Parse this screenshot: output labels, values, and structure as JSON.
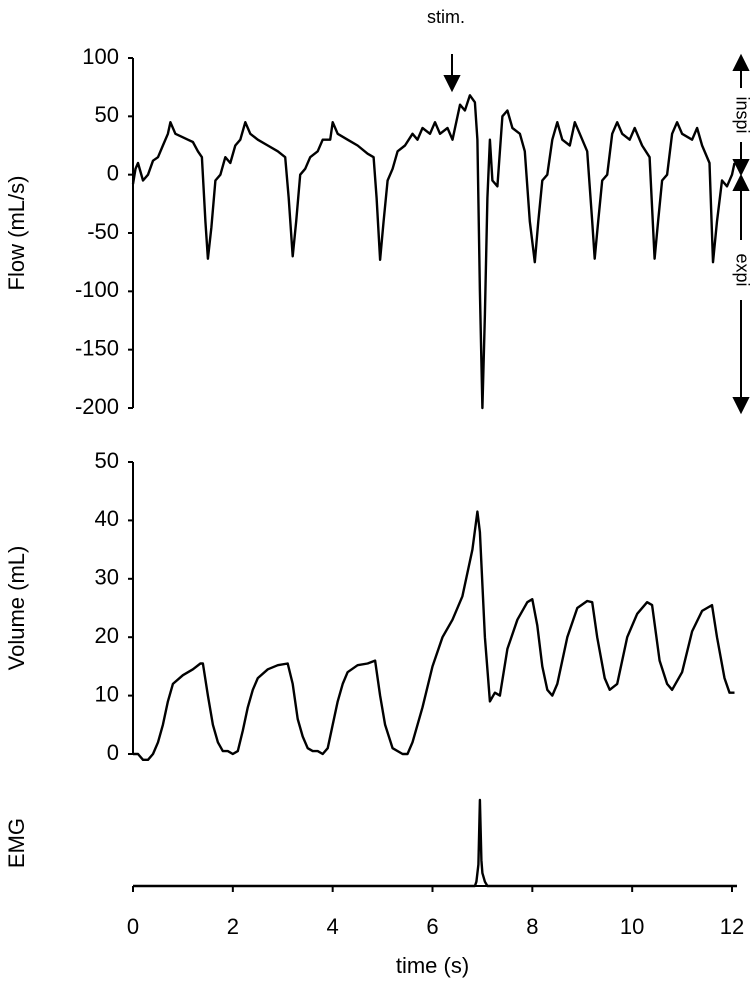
{
  "chart_data": [
    {
      "type": "line",
      "ylabel": "Flow (mL/s)",
      "annotations": [
        "stim.",
        "inspi",
        "expi"
      ],
      "xlim": [
        0,
        12
      ],
      "ylim": [
        -200,
        100
      ],
      "yticks": [
        -200,
        -150,
        -100,
        -50,
        0,
        50,
        100
      ],
      "x": [
        0,
        0.05,
        0.1,
        0.2,
        0.3,
        0.4,
        0.5,
        0.6,
        0.7,
        0.75,
        0.85,
        1.0,
        1.1,
        1.2,
        1.3,
        1.38,
        1.45,
        1.5,
        1.57,
        1.65,
        1.75,
        1.85,
        1.95,
        2.05,
        2.15,
        2.25,
        2.35,
        2.5,
        2.7,
        2.9,
        3.05,
        3.12,
        3.2,
        3.27,
        3.35,
        3.45,
        3.55,
        3.7,
        3.8,
        3.95,
        4.0,
        4.1,
        4.3,
        4.5,
        4.7,
        4.82,
        4.88,
        4.95,
        5.02,
        5.1,
        5.2,
        5.3,
        5.45,
        5.6,
        5.7,
        5.8,
        5.95,
        6.05,
        6.15,
        6.3,
        6.4,
        6.45,
        6.55,
        6.65,
        6.75,
        6.85,
        6.9,
        6.95,
        7.0,
        7.05,
        7.1,
        7.15,
        7.2,
        7.3,
        7.4,
        7.5,
        7.6,
        7.75,
        7.85,
        7.95,
        8.05,
        8.12,
        8.2,
        8.3,
        8.4,
        8.5,
        8.6,
        8.75,
        8.85,
        8.95,
        9.1,
        9.2,
        9.25,
        9.32,
        9.4,
        9.5,
        9.6,
        9.7,
        9.8,
        9.95,
        10.05,
        10.2,
        10.35,
        10.45,
        10.52,
        10.6,
        10.7,
        10.8,
        10.9,
        11.0,
        11.2,
        11.3,
        11.4,
        11.55,
        11.62,
        11.7,
        11.8,
        11.9,
        12.0,
        12.05
      ],
      "series": [
        {
          "color": "#000000",
          "values": [
            -8,
            5,
            10,
            -5,
            0,
            12,
            15,
            25,
            35,
            45,
            35,
            32,
            30,
            28,
            20,
            15,
            -40,
            -72,
            -45,
            -5,
            0,
            15,
            10,
            25,
            30,
            45,
            35,
            30,
            25,
            20,
            15,
            -20,
            -70,
            -40,
            0,
            5,
            15,
            20,
            30,
            30,
            45,
            35,
            30,
            25,
            18,
            15,
            -20,
            -73,
            -40,
            -5,
            5,
            20,
            25,
            35,
            30,
            40,
            35,
            45,
            35,
            40,
            30,
            40,
            60,
            55,
            68,
            62,
            30,
            -100,
            -200,
            -120,
            -20,
            30,
            -5,
            -10,
            50,
            55,
            40,
            35,
            20,
            -40,
            -75,
            -40,
            -5,
            0,
            30,
            45,
            30,
            25,
            45,
            35,
            20,
            -40,
            -72,
            -40,
            -5,
            0,
            35,
            45,
            35,
            30,
            40,
            25,
            15,
            -72,
            -40,
            -5,
            0,
            35,
            45,
            35,
            30,
            40,
            25,
            10,
            -75,
            -40,
            -5,
            -10,
            0,
            10
          ]
        }
      ]
    },
    {
      "type": "line",
      "ylabel": "Volume (mL)",
      "xlim": [
        0,
        12
      ],
      "ylim": [
        0,
        50
      ],
      "yticks": [
        0,
        10,
        20,
        30,
        40,
        50
      ],
      "x": [
        0,
        0.1,
        0.2,
        0.3,
        0.4,
        0.5,
        0.6,
        0.7,
        0.8,
        1.0,
        1.2,
        1.35,
        1.4,
        1.5,
        1.6,
        1.7,
        1.8,
        1.9,
        2.0,
        2.1,
        2.2,
        2.3,
        2.4,
        2.5,
        2.7,
        2.9,
        3.1,
        3.2,
        3.3,
        3.4,
        3.5,
        3.6,
        3.7,
        3.8,
        3.9,
        4.0,
        4.1,
        4.2,
        4.3,
        4.5,
        4.7,
        4.85,
        4.95,
        5.05,
        5.2,
        5.4,
        5.5,
        5.6,
        5.8,
        6.0,
        6.2,
        6.4,
        6.6,
        6.8,
        6.9,
        6.95,
        7.05,
        7.15,
        7.25,
        7.35,
        7.5,
        7.7,
        7.9,
        8.0,
        8.1,
        8.2,
        8.3,
        8.4,
        8.5,
        8.7,
        8.9,
        9.1,
        9.2,
        9.3,
        9.45,
        9.55,
        9.7,
        9.9,
        10.1,
        10.3,
        10.4,
        10.55,
        10.7,
        10.8,
        11.0,
        11.2,
        11.4,
        11.6,
        11.7,
        11.85,
        11.95,
        12.05
      ],
      "series": [
        {
          "color": "#000000",
          "values": [
            0,
            0,
            -1,
            -1,
            0,
            2,
            5,
            9,
            12,
            13.5,
            14.5,
            15.5,
            15.5,
            10,
            5,
            2,
            0.5,
            0.5,
            0,
            0.5,
            4,
            8,
            11,
            13,
            14.5,
            15.2,
            15.5,
            12,
            6,
            3,
            1,
            0.5,
            0.5,
            0,
            1,
            5,
            9,
            12,
            14,
            15.2,
            15.5,
            16,
            10,
            5,
            1,
            0,
            0,
            2,
            8,
            15,
            20,
            23,
            27,
            35,
            41.5,
            38,
            20,
            9,
            10.5,
            10,
            18,
            23,
            26,
            26.5,
            22,
            15,
            11,
            10,
            12,
            20,
            25,
            26.2,
            26,
            20,
            13,
            11,
            12,
            20,
            24,
            26,
            25.5,
            16,
            12,
            11,
            14,
            21,
            24.5,
            25.5,
            20,
            13,
            10.5,
            10.5
          ]
        }
      ]
    },
    {
      "type": "line",
      "ylabel": "EMG",
      "xlabel": "time (s)",
      "xlim": [
        0,
        12
      ],
      "ylim": [
        0,
        1
      ],
      "xticks": [
        0,
        2,
        4,
        6,
        8,
        10,
        12
      ],
      "x": [
        0,
        6.85,
        6.88,
        6.92,
        6.95,
        6.98,
        7.0,
        7.05,
        7.1,
        12.1
      ],
      "series": [
        {
          "color": "#000000",
          "values": [
            0,
            0,
            0.05,
            0.25,
            1,
            0.3,
            0.15,
            0.05,
            0,
            0
          ]
        }
      ]
    }
  ]
}
